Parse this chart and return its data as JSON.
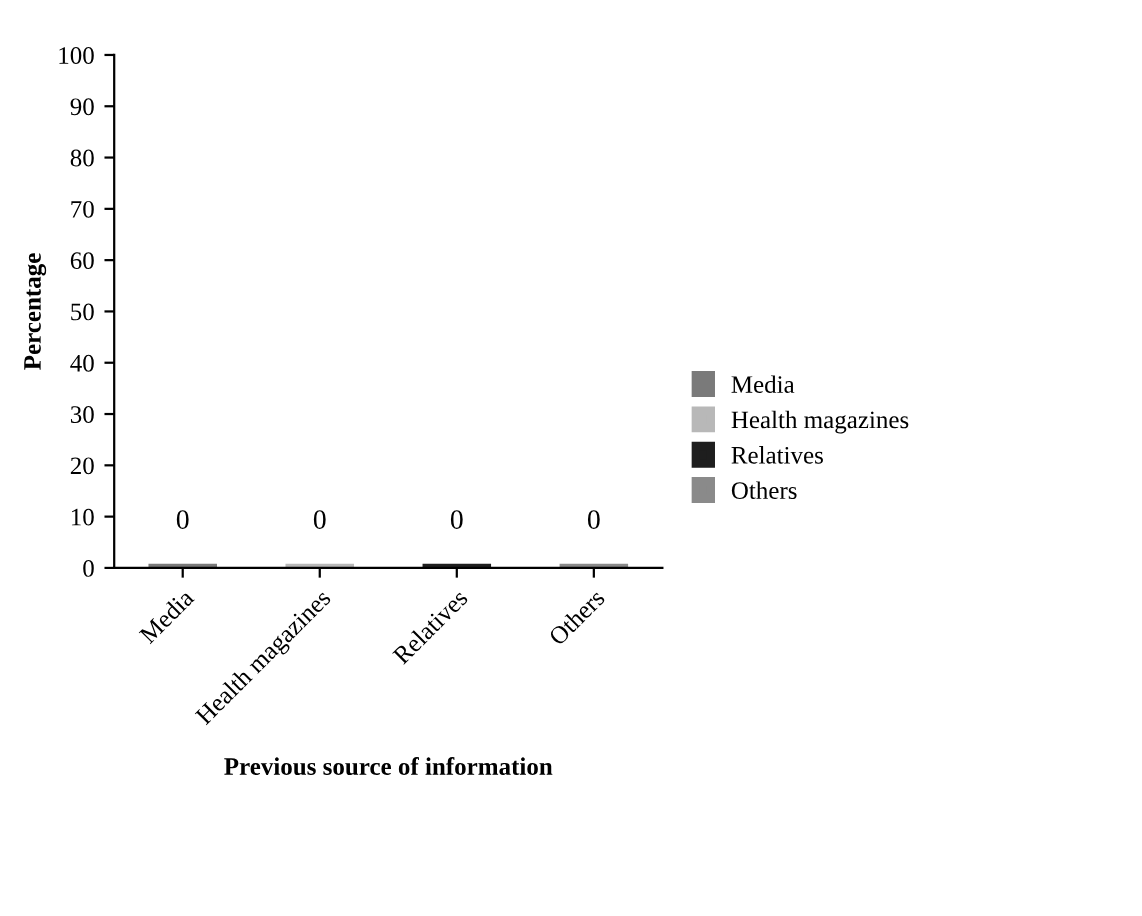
{
  "chart_data": {
    "type": "bar",
    "xlabel": "Previous source of information",
    "ylabel": "Percentage",
    "categories": [
      "Media",
      "Health magazines",
      "Relatives",
      "Others"
    ],
    "series": [
      {
        "name": "Media",
        "color": "#7a7a7a",
        "values": [
          0,
          null,
          null,
          null
        ]
      },
      {
        "name": "Health magazines",
        "color": "#b8b8b8",
        "values": [
          null,
          0,
          null,
          null
        ]
      },
      {
        "name": "Relatives",
        "color": "#1e1e1e",
        "values": [
          null,
          null,
          0,
          null
        ]
      },
      {
        "name": "Others",
        "color": "#8a8a8a",
        "values": [
          null,
          null,
          null,
          0
        ]
      }
    ],
    "ylim": [
      0,
      100
    ],
    "yticks": [
      0,
      10,
      20,
      30,
      40,
      50,
      60,
      70,
      80,
      90,
      100
    ],
    "data_labels": true,
    "legend": "right",
    "grid": false
  }
}
